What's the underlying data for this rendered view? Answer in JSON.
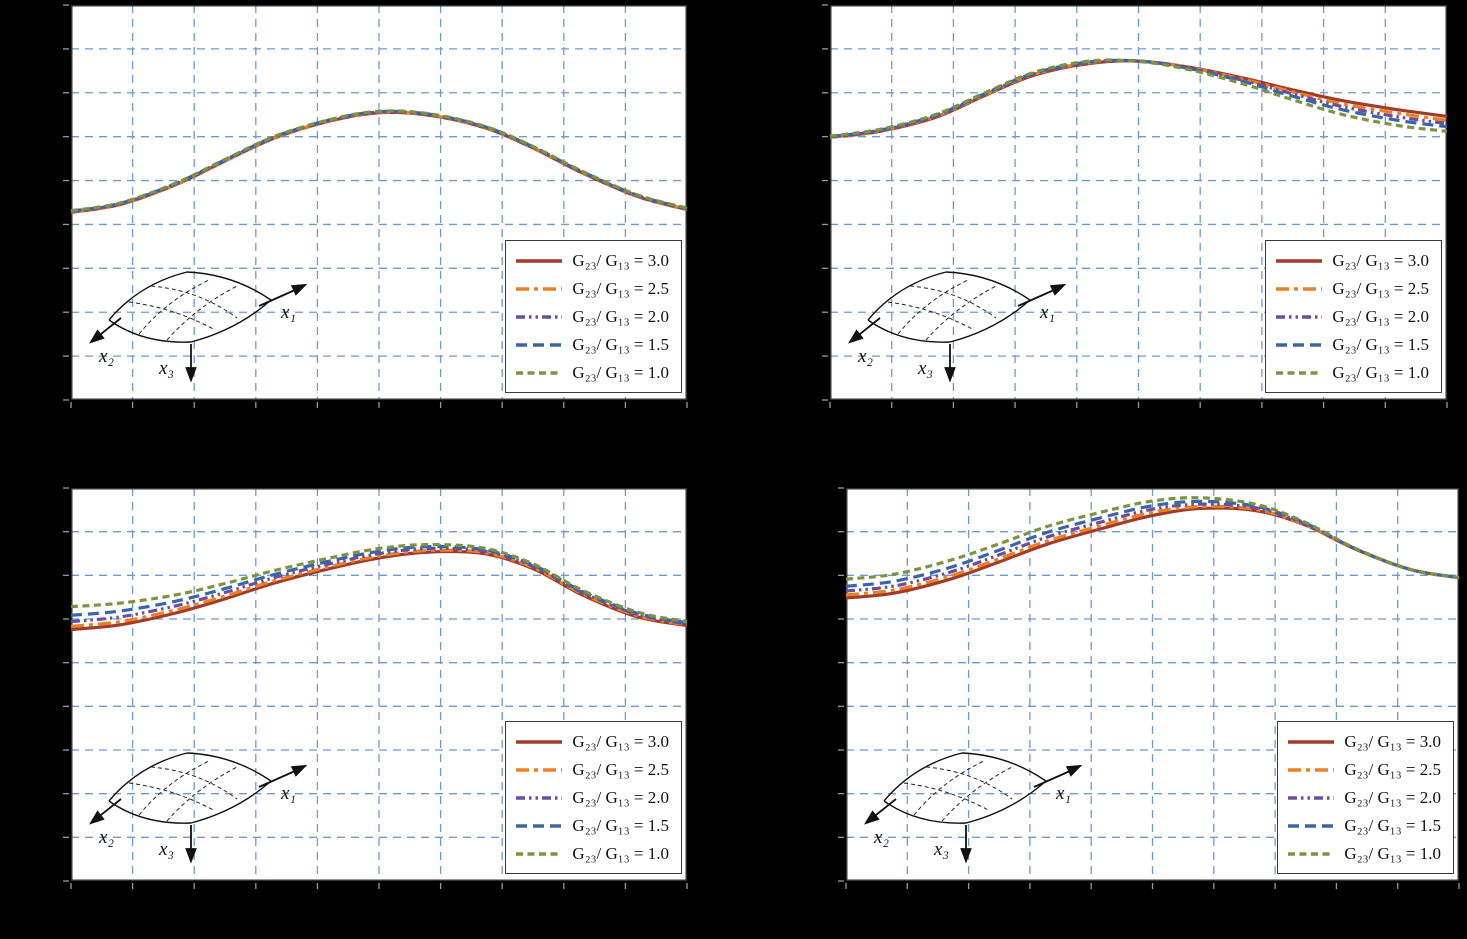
{
  "figure": {
    "background": "#000000",
    "panel_background": "#ffffff",
    "grid_color": "#6C9BD2",
    "frame_color": "#333333",
    "tick_color": "#9a9a9a",
    "grid": {
      "cols": 10,
      "rows": 9
    }
  },
  "inset": {
    "x1_label": "x₁",
    "x2_label": "x₂",
    "x3_label": "x₃"
  },
  "legend": {
    "entries": [
      {
        "label": "G₂₃/ G₁₃ = 3.0",
        "color": "#A23B28",
        "dash": ""
      },
      {
        "label": "G₂₃/ G₁₃ = 2.5",
        "color": "#ED8022",
        "dash": "13 5 4 5"
      },
      {
        "label": "G₂₃/ G₁₃ = 2.0",
        "color": "#6A4FA0",
        "dash": "9 4 2.5 4 2.5 4"
      },
      {
        "label": "G₂₃/ G₁₃ = 1.5",
        "color": "#3A66A8",
        "dash": "11 6"
      },
      {
        "label": "G₂₃/ G₁₃ = 1.0",
        "color": "#7E9340",
        "dash": "7 4.5"
      }
    ]
  },
  "chart_data": [
    {
      "id": "top-left",
      "type": "line",
      "title": "",
      "xlabel": "",
      "ylabel": "",
      "tick_labels_visible": false,
      "legend_position": "lower right",
      "xlim": [
        0,
        1
      ],
      "ylim": [
        0,
        1
      ],
      "x": [
        0,
        0.08,
        0.17,
        0.25,
        0.33,
        0.42,
        0.5,
        0.58,
        0.67,
        0.75,
        0.83,
        0.92,
        1
      ],
      "series": [
        {
          "name": "G₂₃/ G₁₃ = 3.0",
          "values": [
            0.475,
            0.495,
            0.545,
            0.605,
            0.663,
            0.706,
            0.727,
            0.721,
            0.69,
            0.638,
            0.575,
            0.515,
            0.482
          ]
        },
        {
          "name": "G₂₃/ G₁₃ = 2.5",
          "values": [
            0.476,
            0.496,
            0.546,
            0.606,
            0.664,
            0.707,
            0.728,
            0.722,
            0.691,
            0.639,
            0.576,
            0.516,
            0.483
          ]
        },
        {
          "name": "G₂₃/ G₁₃ = 2.0",
          "values": [
            0.477,
            0.497,
            0.547,
            0.607,
            0.665,
            0.708,
            0.729,
            0.723,
            0.692,
            0.64,
            0.577,
            0.517,
            0.484
          ]
        },
        {
          "name": "G₂₃/ G₁₃ = 1.5",
          "values": [
            0.478,
            0.498,
            0.548,
            0.608,
            0.666,
            0.709,
            0.73,
            0.724,
            0.693,
            0.641,
            0.578,
            0.518,
            0.485
          ]
        },
        {
          "name": "G₂₃/ G₁₃ = 1.0",
          "values": [
            0.479,
            0.499,
            0.549,
            0.609,
            0.667,
            0.71,
            0.731,
            0.725,
            0.694,
            0.642,
            0.579,
            0.519,
            0.486
          ]
        }
      ]
    },
    {
      "id": "top-right",
      "type": "line",
      "title": "",
      "xlabel": "",
      "ylabel": "",
      "tick_labels_visible": false,
      "legend_position": "lower right",
      "xlim": [
        0,
        1
      ],
      "ylim": [
        0,
        1
      ],
      "x": [
        0,
        0.08,
        0.17,
        0.25,
        0.33,
        0.42,
        0.5,
        0.58,
        0.67,
        0.75,
        0.83,
        0.92,
        1
      ],
      "series": [
        {
          "name": "G₂₃/ G₁₃ = 3.0",
          "values": [
            0.665,
            0.68,
            0.715,
            0.77,
            0.822,
            0.852,
            0.858,
            0.843,
            0.815,
            0.785,
            0.758,
            0.735,
            0.718
          ]
        },
        {
          "name": "G₂₃/ G₁₃ = 2.5",
          "values": [
            0.665,
            0.681,
            0.717,
            0.772,
            0.824,
            0.854,
            0.858,
            0.842,
            0.812,
            0.78,
            0.75,
            0.726,
            0.708
          ]
        },
        {
          "name": "G₂₃/ G₁₃ = 2.0",
          "values": [
            0.666,
            0.682,
            0.718,
            0.773,
            0.825,
            0.855,
            0.858,
            0.841,
            0.809,
            0.775,
            0.743,
            0.717,
            0.7
          ]
        },
        {
          "name": "G₂₃/ G₁₃ = 1.5",
          "values": [
            0.667,
            0.683,
            0.72,
            0.775,
            0.827,
            0.856,
            0.858,
            0.84,
            0.806,
            0.769,
            0.735,
            0.708,
            0.692
          ]
        },
        {
          "name": "G₂₃/ G₁₃ = 1.0",
          "values": [
            0.668,
            0.685,
            0.722,
            0.777,
            0.829,
            0.858,
            0.857,
            0.837,
            0.8,
            0.76,
            0.723,
            0.695,
            0.68
          ]
        }
      ]
    },
    {
      "id": "bottom-left",
      "type": "line",
      "title": "",
      "xlabel": "",
      "ylabel": "",
      "tick_labels_visible": false,
      "legend_position": "lower right",
      "xlim": [
        0,
        1
      ],
      "ylim": [
        0,
        1
      ],
      "x": [
        0,
        0.08,
        0.17,
        0.25,
        0.33,
        0.42,
        0.5,
        0.58,
        0.67,
        0.75,
        0.83,
        0.92,
        1
      ],
      "series": [
        {
          "name": "G₂₃/ G₁₃ = 3.0",
          "values": [
            0.64,
            0.652,
            0.682,
            0.718,
            0.758,
            0.795,
            0.822,
            0.837,
            0.833,
            0.795,
            0.728,
            0.672,
            0.65
          ]
        },
        {
          "name": "G₂₃/ G₁₃ = 2.5",
          "values": [
            0.648,
            0.66,
            0.69,
            0.725,
            0.764,
            0.8,
            0.827,
            0.841,
            0.836,
            0.798,
            0.731,
            0.675,
            0.652
          ]
        },
        {
          "name": "G₂₃/ G₁₃ = 2.0",
          "values": [
            0.66,
            0.672,
            0.7,
            0.734,
            0.772,
            0.807,
            0.833,
            0.846,
            0.84,
            0.801,
            0.734,
            0.678,
            0.654
          ]
        },
        {
          "name": "G₂₃/ G₁₃ = 1.5",
          "values": [
            0.676,
            0.687,
            0.712,
            0.744,
            0.78,
            0.814,
            0.839,
            0.851,
            0.843,
            0.804,
            0.737,
            0.681,
            0.657
          ]
        },
        {
          "name": "G₂₃/ G₁₃ = 1.0",
          "values": [
            0.698,
            0.707,
            0.728,
            0.757,
            0.79,
            0.822,
            0.846,
            0.856,
            0.847,
            0.807,
            0.74,
            0.684,
            0.66
          ]
        }
      ]
    },
    {
      "id": "bottom-right",
      "type": "line",
      "title": "",
      "xlabel": "",
      "ylabel": "",
      "tick_labels_visible": false,
      "legend_position": "lower right",
      "xlim": [
        0,
        1
      ],
      "ylim": [
        0,
        1
      ],
      "x": [
        0,
        0.08,
        0.17,
        0.25,
        0.33,
        0.42,
        0.5,
        0.58,
        0.67,
        0.75,
        0.83,
        0.92,
        1
      ],
      "series": [
        {
          "name": "G₂₃/ G₁₃ = 3.0",
          "values": [
            0.72,
            0.733,
            0.768,
            0.812,
            0.858,
            0.898,
            0.93,
            0.948,
            0.942,
            0.905,
            0.845,
            0.793,
            0.772
          ]
        },
        {
          "name": "G₂₃/ G₁₃ = 2.5",
          "values": [
            0.728,
            0.741,
            0.776,
            0.82,
            0.866,
            0.906,
            0.938,
            0.953,
            0.945,
            0.906,
            0.845,
            0.793,
            0.772
          ]
        },
        {
          "name": "G₂₃/ G₁₃ = 2.0",
          "values": [
            0.738,
            0.751,
            0.786,
            0.83,
            0.876,
            0.915,
            0.946,
            0.959,
            0.949,
            0.908,
            0.846,
            0.793,
            0.772
          ]
        },
        {
          "name": "G₂₃/ G₁₃ = 1.5",
          "values": [
            0.75,
            0.763,
            0.798,
            0.842,
            0.888,
            0.926,
            0.955,
            0.966,
            0.953,
            0.91,
            0.846,
            0.793,
            0.772
          ]
        },
        {
          "name": "G₂₃/ G₁₃ = 1.0",
          "values": [
            0.768,
            0.781,
            0.816,
            0.858,
            0.903,
            0.94,
            0.967,
            0.975,
            0.958,
            0.912,
            0.847,
            0.793,
            0.772
          ]
        }
      ]
    }
  ]
}
